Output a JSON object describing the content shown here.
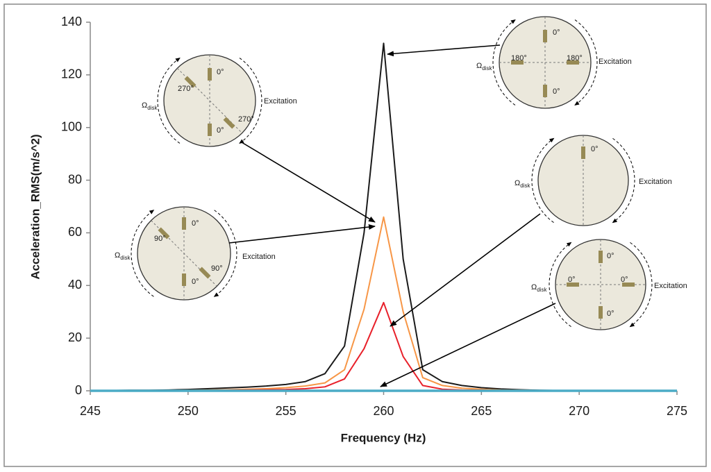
{
  "chart_data": {
    "type": "line",
    "xlabel": "Frequency (Hz)",
    "ylabel": "Acceleration_RMS(m/s^2)",
    "x": [
      245,
      246,
      247,
      248,
      249,
      250,
      251,
      252,
      253,
      254,
      255,
      256,
      257,
      258,
      259,
      260,
      261,
      262,
      263,
      264,
      265,
      266,
      267,
      268,
      269,
      270,
      271,
      272,
      273,
      274,
      275
    ],
    "series": [
      {
        "color": "#1a1a1a",
        "values": [
          0.1,
          0.1,
          0.2,
          0.2,
          0.3,
          0.5,
          0.8,
          1.1,
          1.4,
          1.8,
          2.4,
          3.5,
          6.5,
          17,
          60,
          132,
          50,
          8,
          3.5,
          2,
          1.2,
          0.7,
          0.4,
          0.2,
          0.1,
          0.1,
          0.1,
          0,
          0,
          0,
          0
        ]
      },
      {
        "color": "#f79646",
        "values": [
          0,
          0,
          0,
          0,
          0.1,
          0.2,
          0.3,
          0.4,
          0.6,
          0.8,
          1.2,
          1.8,
          3,
          8,
          31,
          66,
          30,
          5,
          2,
          1,
          0.6,
          0.3,
          0.2,
          0.1,
          0,
          0,
          0,
          0,
          0,
          0,
          0
        ]
      },
      {
        "color": "#e8202a",
        "values": [
          0,
          0,
          0,
          0,
          0,
          0.1,
          0.1,
          0.2,
          0.3,
          0.4,
          0.5,
          0.8,
          1.5,
          4.5,
          16,
          33.5,
          13,
          2,
          0.6,
          0.3,
          0.2,
          0.1,
          0,
          0,
          0,
          0,
          0,
          0,
          0,
          0,
          0
        ]
      },
      {
        "color": "#4bacc6",
        "values": [
          0,
          0,
          0,
          0,
          0,
          0,
          0,
          0,
          0,
          0,
          0,
          0,
          0,
          0,
          0,
          0,
          0,
          0,
          0,
          0,
          0,
          0,
          0,
          0,
          0,
          0,
          0,
          0,
          0,
          0,
          0
        ]
      }
    ],
    "xlim": [
      245,
      275
    ],
    "xticks": [
      245,
      250,
      255,
      260,
      265,
      270,
      275
    ],
    "ylim": [
      0,
      140
    ],
    "yticks": [
      0,
      20,
      40,
      60,
      80,
      100,
      120,
      140
    ],
    "annotations": [
      {
        "labels": [
          "0°",
          "270°",
          "0°",
          "270°"
        ],
        "omega": "Ω",
        "omega_subscript": "disk",
        "excitation": "Excitation"
      },
      {
        "labels": [
          "0°",
          "90°",
          "90°",
          "0°"
        ],
        "omega": "Ω",
        "omega_subscript": "disk",
        "excitation": "Excitation"
      },
      {
        "labels": [
          "0°",
          "180°",
          "180°",
          "0°"
        ],
        "omega": "Ω",
        "omega_subscript": "disk",
        "excitation": "Excitation"
      },
      {
        "labels": [
          "0°"
        ],
        "omega": "Ω",
        "omega_subscript": "disk",
        "excitation": "Excitation"
      },
      {
        "labels": [
          "0°",
          "0°",
          "0°",
          "0°"
        ],
        "omega": "Ω",
        "omega_subscript": "disk",
        "excitation": "Excitation"
      }
    ]
  }
}
